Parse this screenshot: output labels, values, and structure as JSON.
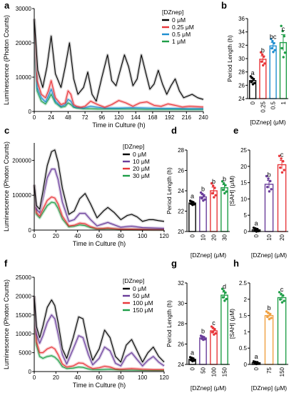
{
  "chart_data": [
    {
      "panel": "a",
      "type": "line",
      "xlabel": "Time in Culture (h)",
      "ylabel": "Luminescence (Photon Counts)",
      "xlim": [
        0,
        240
      ],
      "ylim": [
        0,
        30000
      ],
      "xticks": [
        0,
        24,
        48,
        72,
        96,
        120,
        144,
        168,
        192,
        216,
        240
      ],
      "yticks": [
        0,
        10000,
        20000,
        30000
      ],
      "legend": {
        "title": "[DZnep]",
        "placement": "top-right"
      },
      "series": [
        {
          "name": "0 μM",
          "color": "#000000",
          "x": [
            0,
            5,
            12,
            18,
            24,
            30,
            38,
            44,
            50,
            56,
            62,
            70,
            76,
            82,
            88,
            96,
            104,
            110,
            116,
            122,
            128,
            134,
            140,
            146,
            152,
            158,
            164,
            170,
            176,
            182,
            188,
            194,
            200,
            206,
            212,
            218,
            224,
            232,
            240
          ],
          "y": [
            27000,
            12000,
            7000,
            13000,
            22000,
            11000,
            7000,
            13000,
            20000,
            9500,
            5000,
            7000,
            11500,
            5000,
            3000,
            10000,
            16500,
            9000,
            7500,
            12000,
            16500,
            13000,
            7500,
            9500,
            16500,
            11500,
            6500,
            8000,
            12000,
            8000,
            5000,
            7500,
            9500,
            6000,
            4000,
            4500,
            5000,
            4000,
            3500
          ]
        },
        {
          "name": "0.25 μM",
          "color": "#e8363a",
          "x": [
            0,
            4,
            10,
            16,
            20,
            24,
            30,
            38,
            44,
            48,
            52,
            56,
            60,
            66,
            72,
            80,
            90,
            100,
            110,
            120,
            130,
            140,
            150,
            160,
            170,
            180,
            190,
            200,
            210,
            220,
            230,
            240
          ],
          "y": [
            27000,
            9000,
            5000,
            4000,
            6000,
            9000,
            4000,
            2000,
            2500,
            6000,
            5000,
            2000,
            1500,
            1200,
            1500,
            3000,
            2000,
            1200,
            2000,
            3200,
            2500,
            1500,
            2500,
            2800,
            1800,
            1500,
            2200,
            1800,
            1300,
            1500,
            1400,
            1300
          ]
        },
        {
          "name": "0.5 μM",
          "color": "#1f8fd0",
          "x": [
            0,
            4,
            10,
            16,
            20,
            24,
            30,
            38,
            44,
            48,
            52,
            56,
            60,
            70,
            80,
            90,
            100,
            120,
            140,
            160,
            180,
            200,
            220,
            240
          ],
          "y": [
            27000,
            7000,
            4000,
            2800,
            4500,
            6500,
            3000,
            1500,
            2000,
            3500,
            3000,
            1500,
            1200,
            1000,
            1500,
            1200,
            1000,
            1000,
            1100,
            1000,
            900,
            900,
            800,
            800
          ]
        },
        {
          "name": "1 μM",
          "color": "#1f9e48",
          "x": [
            0,
            4,
            10,
            16,
            20,
            24,
            30,
            38,
            44,
            48,
            52,
            56,
            60,
            70,
            80,
            90,
            100,
            120,
            140,
            160,
            180,
            200,
            220,
            240
          ],
          "y": [
            27000,
            6000,
            3000,
            2200,
            3500,
            5000,
            2500,
            1200,
            1500,
            2500,
            2000,
            1200,
            1000,
            800,
            800,
            700,
            700,
            700,
            700,
            600,
            600,
            600,
            600,
            600
          ]
        }
      ]
    },
    {
      "panel": "b",
      "type": "bar",
      "xlabel": "[DZnep] (μM)",
      "ylabel": "Period Length (h)",
      "categories": [
        "0",
        "0.25",
        "0.5",
        "1"
      ],
      "values": [
        26.7,
        29.9,
        31.9,
        32.4
      ],
      "errors": [
        0.3,
        0.5,
        0.5,
        1.2
      ],
      "letters": [
        "a",
        "b",
        "bc",
        "c"
      ],
      "colors": [
        "#000000",
        "#e8363a",
        "#1f8fd0",
        "#1f9e48"
      ],
      "ylim": [
        24,
        36
      ],
      "yticks": [
        24,
        26,
        28,
        30,
        32,
        34,
        36
      ]
    },
    {
      "panel": "c",
      "type": "line",
      "xlabel": "Time in Culture (h)",
      "ylabel": "Luminescence (Photon Counts)",
      "xlim": [
        0,
        120
      ],
      "ylim": [
        0,
        250000
      ],
      "xticks": [
        0,
        20,
        40,
        60,
        80,
        100,
        120
      ],
      "yticks": [
        0,
        100000,
        200000
      ],
      "legend": {
        "title": "[DZnep]",
        "placement": "top-right"
      },
      "series": [
        {
          "name": "0 μM",
          "color": "#000000",
          "x": [
            0,
            2,
            5,
            8,
            12,
            16,
            19,
            22,
            26,
            32,
            37,
            42,
            47,
            52,
            58,
            64,
            68,
            74,
            80,
            86,
            90,
            95,
            100,
            106,
            110,
            115,
            120
          ],
          "y": [
            130000,
            70000,
            60000,
            110000,
            185000,
            225000,
            230000,
            195000,
            120000,
            45000,
            55000,
            90000,
            105000,
            75000,
            35000,
            55000,
            65000,
            50000,
            30000,
            42000,
            45000,
            38000,
            25000,
            30000,
            30000,
            27000,
            25000
          ]
        },
        {
          "name": "10 μM",
          "color": "#6a3d9a",
          "x": [
            0,
            2,
            5,
            8,
            12,
            16,
            19,
            22,
            26,
            32,
            37,
            42,
            47,
            52,
            58,
            64,
            68,
            74,
            80,
            86,
            90,
            100,
            110,
            120
          ],
          "y": [
            130000,
            60000,
            50000,
            90000,
            150000,
            175000,
            175000,
            145000,
            80000,
            25000,
            30000,
            48000,
            48000,
            30000,
            12000,
            18000,
            22000,
            15000,
            8000,
            10000,
            11000,
            7000,
            6000,
            5000
          ]
        },
        {
          "name": "20 μM",
          "color": "#e8363a",
          "x": [
            0,
            2,
            5,
            8,
            12,
            16,
            19,
            22,
            26,
            32,
            37,
            42,
            47,
            52,
            58,
            64,
            68,
            74,
            80,
            90,
            100,
            110,
            120
          ],
          "y": [
            130000,
            50000,
            40000,
            60000,
            85000,
            95000,
            92000,
            75000,
            40000,
            12000,
            14000,
            20000,
            18000,
            10000,
            4000,
            5000,
            6000,
            4000,
            2500,
            2500,
            2000,
            1500,
            1500
          ]
        },
        {
          "name": "30 μM",
          "color": "#1f9e48",
          "x": [
            0,
            2,
            5,
            8,
            12,
            16,
            19,
            22,
            26,
            32,
            37,
            42,
            47,
            52,
            58,
            64,
            68,
            74,
            80,
            90,
            100,
            110,
            120
          ],
          "y": [
            130000,
            45000,
            35000,
            50000,
            70000,
            80000,
            78000,
            62000,
            32000,
            9000,
            11000,
            15000,
            13000,
            7000,
            3000,
            3500,
            4000,
            3000,
            2000,
            1800,
            1500,
            1200,
            1000
          ]
        }
      ]
    },
    {
      "panel": "d",
      "type": "bar",
      "xlabel": "[DZnep] (μM)",
      "ylabel": "Period Length (h)",
      "categories": [
        "0",
        "10",
        "20",
        "30"
      ],
      "values": [
        22.8,
        23.4,
        24.0,
        24.3
      ],
      "errors": [
        0.1,
        0.2,
        0.35,
        0.3
      ],
      "letters": [
        "a",
        "b",
        "b",
        "b"
      ],
      "colors": [
        "#000000",
        "#6a3d9a",
        "#e8363a",
        "#1f9e48"
      ],
      "ylim": [
        20,
        28
      ],
      "yticks": [
        20,
        22,
        24,
        26,
        28
      ]
    },
    {
      "panel": "e",
      "type": "bar",
      "xlabel": "[DZnep] (μM)",
      "ylabel": "[SAH] (μM)",
      "categories": [
        "0",
        "10",
        "20"
      ],
      "values": [
        0.5,
        14.5,
        20.5
      ],
      "errors": [
        0.3,
        1.2,
        1.3
      ],
      "letters": [
        "a",
        "b",
        "c"
      ],
      "colors": [
        "#000000",
        "#6a3d9a",
        "#e8363a"
      ],
      "ylim": [
        0,
        25
      ],
      "yticks": [
        0,
        5,
        10,
        15,
        20,
        25
      ]
    },
    {
      "panel": "f",
      "type": "line",
      "xlabel": "Time in Culture (h)",
      "ylabel": "Luminescence (Photon Counts)",
      "xlim": [
        0,
        120
      ],
      "ylim": [
        0,
        25000
      ],
      "xticks": [
        0,
        20,
        40,
        60,
        80,
        100,
        120
      ],
      "yticks": [
        0,
        5000,
        10000,
        15000,
        20000,
        25000
      ],
      "legend": {
        "title": "[DZnep]",
        "placement": "top-right"
      },
      "series": [
        {
          "name": "0 μM",
          "color": "#000000",
          "x": [
            0,
            2,
            5,
            8,
            12,
            16,
            19,
            22,
            26,
            30,
            36,
            41,
            45,
            50,
            54,
            60,
            65,
            70,
            75,
            80,
            85,
            90,
            95,
            100,
            105,
            110,
            115,
            120
          ],
          "y": [
            20000,
            12000,
            9000,
            12000,
            17000,
            19000,
            17500,
            13000,
            6000,
            3500,
            9000,
            14500,
            14000,
            7000,
            3000,
            6000,
            11000,
            9000,
            4000,
            2500,
            7000,
            8500,
            5500,
            2500,
            5000,
            6500,
            4000,
            2500
          ]
        },
        {
          "name": "50 μM",
          "color": "#6a3d9a",
          "x": [
            0,
            2,
            5,
            8,
            12,
            16,
            19,
            22,
            26,
            30,
            36,
            41,
            45,
            50,
            54,
            60,
            65,
            70,
            75,
            80,
            85,
            90,
            95,
            100,
            105,
            110,
            115,
            120
          ],
          "y": [
            20000,
            10000,
            7500,
            9500,
            13000,
            15000,
            14000,
            10000,
            4500,
            2000,
            6000,
            9500,
            9000,
            4500,
            1800,
            3500,
            6500,
            5500,
            2200,
            1500,
            4000,
            5000,
            3200,
            1500,
            3000,
            4000,
            2500,
            1500
          ]
        },
        {
          "name": "100 μM",
          "color": "#e8363a",
          "x": [
            0,
            2,
            5,
            8,
            12,
            16,
            19,
            22,
            26,
            30,
            36,
            41,
            45,
            50,
            54,
            60,
            65,
            70,
            75,
            80,
            90,
            100,
            110,
            120
          ],
          "y": [
            20000,
            8000,
            5000,
            5000,
            6000,
            6500,
            6000,
            4500,
            2000,
            1200,
            1500,
            2300,
            2200,
            1300,
            800,
            1000,
            1400,
            1200,
            700,
            600,
            800,
            600,
            500,
            500
          ]
        },
        {
          "name": "150 μM",
          "color": "#1f9e48",
          "x": [
            0,
            2,
            5,
            8,
            12,
            16,
            19,
            22,
            26,
            30,
            36,
            41,
            45,
            50,
            54,
            60,
            70,
            80,
            90,
            100,
            110,
            120
          ],
          "y": [
            20000,
            7000,
            4000,
            3500,
            4000,
            4200,
            3800,
            3000,
            1300,
            800,
            900,
            1200,
            1100,
            700,
            500,
            500,
            600,
            400,
            400,
            300,
            300,
            300
          ]
        }
      ]
    },
    {
      "panel": "g",
      "type": "bar",
      "xlabel": "[DZnep] (μM)",
      "ylabel": "Period Length (h)",
      "categories": [
        "0",
        "50",
        "100",
        "150"
      ],
      "values": [
        24.5,
        26.6,
        27.3,
        30.8
      ],
      "errors": [
        0.1,
        0.1,
        0.2,
        0.3
      ],
      "letters": [
        "a",
        "b",
        "c",
        "d"
      ],
      "colors": [
        "#000000",
        "#6a3d9a",
        "#e8363a",
        "#1f9e48"
      ],
      "ylim": [
        24,
        32
      ],
      "yticks": [
        24,
        26,
        28,
        30,
        32
      ]
    },
    {
      "panel": "h",
      "type": "bar",
      "xlabel": "[DZnep] (μM)",
      "ylabel": "[SAH] (μM)",
      "categories": [
        "0",
        "75",
        "150"
      ],
      "values": [
        0.05,
        1.5,
        2.05
      ],
      "errors": [
        0.02,
        0.06,
        0.08
      ],
      "letters": [
        "a",
        "b",
        "c"
      ],
      "colors": [
        "#000000",
        "#f0a040",
        "#1f9e48"
      ],
      "ylim": [
        0,
        2.5
      ],
      "yticks": [
        0,
        0.5,
        1.0,
        1.5,
        2.0,
        2.5
      ]
    }
  ]
}
